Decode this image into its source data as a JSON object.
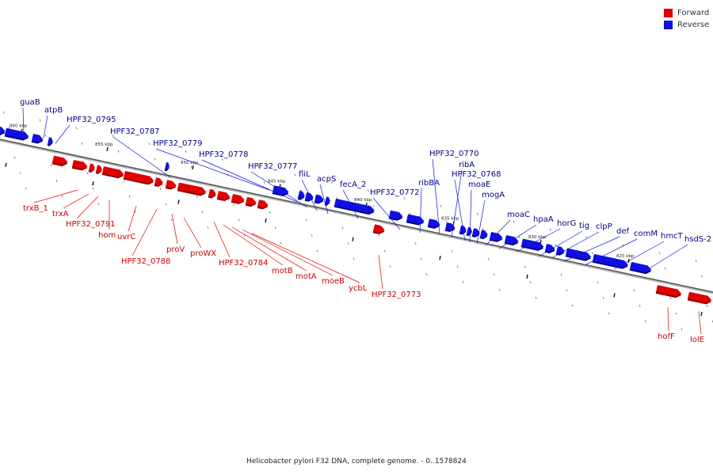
{
  "legend": [
    {
      "label": "Forward",
      "color": "#e00000"
    },
    {
      "label": "Reverse",
      "color": "#1010e0"
    }
  ],
  "caption": "Helicobacter pylori F32 DNA, complete genome. - 0..1578824",
  "colors": {
    "forward": "#e00000",
    "forward_dark": "#900000",
    "reverse": "#1010e0",
    "reverse_dark": "#000090",
    "forward_label": "#cc0000",
    "reverse_label": "#00008b",
    "axis": "#888888",
    "tick": "#111111"
  },
  "ticks": [
    "860 kbp",
    "855 kbp",
    "850 kbp",
    "845 kbp",
    "840 kbp",
    "835 kbp",
    "830 kbp",
    "825 kbp"
  ],
  "genes": {
    "reverse": [
      "guaB",
      "atpB",
      "HPF32_0795",
      "HPF32_0787",
      "HPF32_0779",
      "HPF32_0778",
      "HPF32_0777",
      "fliL",
      "acpS",
      "fecA_2",
      "HPF32_0772",
      "ribBA",
      "HPF32_0770",
      "ribA",
      "HPF32_0768",
      "moaE",
      "mogA",
      "moaC",
      "hpaA",
      "horG",
      "tig",
      "clpP",
      "def",
      "comM",
      "hmcT",
      "hsdS-2"
    ],
    "forward": [
      "trxB_1",
      "trxA",
      "HPF32_0791",
      "hom",
      "uvrC",
      "HPF32_0788",
      "proV",
      "proWX",
      "HPF32_0784",
      "motB",
      "motA",
      "moeB",
      "ycbL",
      "HPF32_0773",
      "hofF",
      "lolE"
    ]
  }
}
